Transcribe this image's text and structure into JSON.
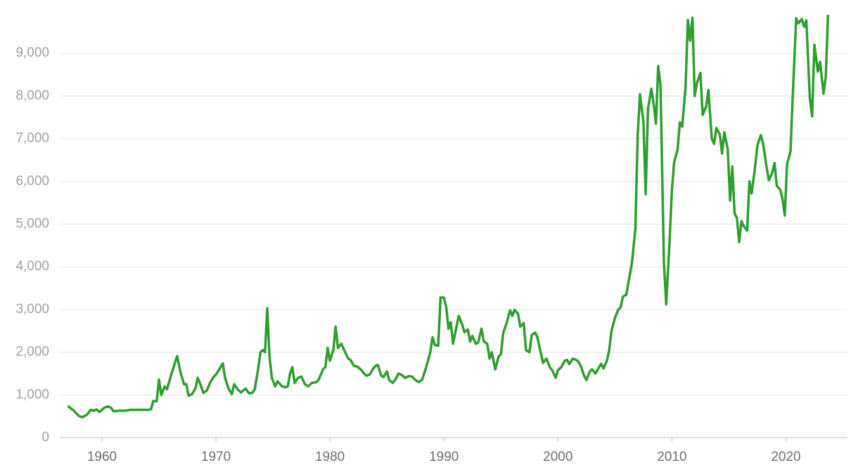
{
  "chart_data": {
    "type": "line",
    "x": [
      1957.0,
      1957.5,
      1958.0,
      1958.3,
      1958.7,
      1959.0,
      1959.3,
      1959.5,
      1959.8,
      1960.2,
      1960.5,
      1960.8,
      1961.0,
      1961.5,
      1962.0,
      1962.5,
      1963.0,
      1964.0,
      1964.3,
      1964.5,
      1964.8,
      1965.0,
      1965.2,
      1965.5,
      1965.7,
      1966.0,
      1966.4,
      1966.6,
      1966.9,
      1967.2,
      1967.4,
      1967.6,
      1967.9,
      1968.2,
      1968.4,
      1968.6,
      1968.9,
      1969.2,
      1969.5,
      1969.8,
      1970.0,
      1970.3,
      1970.6,
      1970.8,
      1971.1,
      1971.4,
      1971.6,
      1971.9,
      1972.2,
      1972.6,
      1972.9,
      1973.2,
      1973.4,
      1973.7,
      1973.9,
      1974.1,
      1974.3,
      1974.5,
      1974.7,
      1974.9,
      1975.2,
      1975.4,
      1975.8,
      1976.1,
      1976.3,
      1976.5,
      1976.7,
      1976.9,
      1977.2,
      1977.5,
      1977.8,
      1978.1,
      1978.4,
      1978.8,
      1979.0,
      1979.4,
      1979.6,
      1979.8,
      1980.0,
      1980.3,
      1980.5,
      1980.7,
      1981.0,
      1981.3,
      1981.6,
      1981.8,
      1982.1,
      1982.4,
      1982.7,
      1983.0,
      1983.2,
      1983.5,
      1983.8,
      1984.0,
      1984.2,
      1984.5,
      1984.7,
      1985.0,
      1985.2,
      1985.5,
      1985.8,
      1986.0,
      1986.3,
      1986.6,
      1986.9,
      1987.2,
      1987.5,
      1987.8,
      1988.1,
      1988.5,
      1988.8,
      1989.0,
      1989.2,
      1989.5,
      1989.7,
      1990.0,
      1990.2,
      1990.4,
      1990.6,
      1990.8,
      1991.1,
      1991.3,
      1991.6,
      1991.8,
      1992.1,
      1992.3,
      1992.5,
      1992.8,
      1993.0,
      1993.3,
      1993.5,
      1993.8,
      1994.0,
      1994.2,
      1994.5,
      1994.8,
      1995.0,
      1995.2,
      1995.5,
      1995.8,
      1996.0,
      1996.2,
      1996.5,
      1996.7,
      1997.0,
      1997.2,
      1997.5,
      1997.7,
      1998.0,
      1998.2,
      1998.5,
      1998.7,
      1999.0,
      1999.3,
      1999.5,
      1999.8,
      2000.0,
      2000.3,
      2000.6,
      2000.8,
      2001.0,
      2001.3,
      2001.6,
      2001.8,
      2002.0,
      2002.3,
      2002.5,
      2002.8,
      2003.0,
      2003.3,
      2003.5,
      2003.8,
      2004.0,
      2004.3,
      2004.5,
      2004.7,
      2005.0,
      2005.3,
      2005.5,
      2005.7,
      2006.0,
      2006.3,
      2006.5,
      2006.8,
      2007.0,
      2007.2,
      2007.5,
      2007.7,
      2007.9,
      2008.2,
      2008.4,
      2008.6,
      2008.8,
      2009.0,
      2009.3,
      2009.5,
      2009.8,
      2010.0,
      2010.2,
      2010.5,
      2010.7,
      2010.9,
      2011.2,
      2011.4,
      2011.6,
      2011.8,
      2012.0,
      2012.2,
      2012.5,
      2012.7,
      2013.0,
      2013.2,
      2013.5,
      2013.7,
      2013.9,
      2014.2,
      2014.4,
      2014.6,
      2014.9,
      2015.1,
      2015.3,
      2015.5,
      2015.7,
      2015.9,
      2016.1,
      2016.3,
      2016.6,
      2016.8,
      2017.0,
      2017.3,
      2017.5,
      2017.8,
      2018.0,
      2018.3,
      2018.5,
      2018.8,
      2019.0,
      2019.2,
      2019.5,
      2019.7,
      2019.9,
      2020.1,
      2020.4,
      2020.6,
      2020.9,
      2021.1,
      2021.4,
      2021.6,
      2021.8,
      2022.1,
      2022.3,
      2022.5,
      2022.8,
      2023.0,
      2023.3,
      2023.5,
      2023.7
    ],
    "values": [
      740,
      640,
      500,
      480,
      540,
      650,
      630,
      660,
      600,
      700,
      730,
      700,
      620,
      630,
      630,
      650,
      650,
      650,
      660,
      860,
      850,
      1360,
      1000,
      1200,
      1130,
      1400,
      1750,
      1910,
      1520,
      1250,
      1250,
      980,
      1020,
      1150,
      1400,
      1270,
      1050,
      1100,
      1300,
      1420,
      1480,
      1600,
      1740,
      1400,
      1150,
      1020,
      1250,
      1130,
      1060,
      1150,
      1040,
      1050,
      1130,
      1600,
      2000,
      2050,
      2000,
      3030,
      1900,
      1400,
      1200,
      1320,
      1200,
      1180,
      1200,
      1500,
      1650,
      1280,
      1400,
      1430,
      1250,
      1200,
      1280,
      1300,
      1350,
      1600,
      1650,
      2100,
      1800,
      2050,
      2600,
      2100,
      2200,
      2020,
      1850,
      1820,
      1680,
      1660,
      1600,
      1500,
      1450,
      1480,
      1620,
      1680,
      1700,
      1450,
      1420,
      1550,
      1350,
      1280,
      1380,
      1500,
      1470,
      1400,
      1440,
      1430,
      1350,
      1300,
      1360,
      1700,
      2000,
      2350,
      2170,
      2150,
      3280,
      3280,
      3050,
      2550,
      2700,
      2200,
      2600,
      2850,
      2650,
      2470,
      2530,
      2250,
      2380,
      2200,
      2220,
      2550,
      2250,
      2200,
      1850,
      2000,
      1600,
      1900,
      1950,
      2450,
      2680,
      2980,
      2850,
      2990,
      2900,
      2600,
      2680,
      2050,
      2000,
      2400,
      2460,
      2350,
      1980,
      1750,
      1850,
      1640,
      1580,
      1400,
      1580,
      1650,
      1800,
      1820,
      1720,
      1850,
      1820,
      1780,
      1680,
      1450,
      1350,
      1550,
      1600,
      1500,
      1600,
      1730,
      1620,
      1800,
      2050,
      2500,
      2800,
      3000,
      3050,
      3300,
      3350,
      3800,
      4100,
      4900,
      7100,
      8040,
      7400,
      5700,
      7700,
      8170,
      7800,
      7350,
      8700,
      8250,
      4100,
      3120,
      4600,
      5800,
      6450,
      6750,
      7380,
      7280,
      8200,
      9780,
      9300,
      9830,
      8000,
      8300,
      8540,
      7560,
      7750,
      8140,
      7000,
      6880,
      7250,
      7100,
      6650,
      7150,
      6750,
      5550,
      6350,
      5250,
      5150,
      4580,
      5070,
      4950,
      4850,
      6000,
      5720,
      6350,
      6850,
      7080,
      6880,
      6350,
      6030,
      6200,
      6430,
      5900,
      5800,
      5600,
      5200,
      6400,
      6700,
      8000,
      9820,
      9700,
      9800,
      9620,
      9770,
      7950,
      7520,
      9200,
      8570,
      8800,
      8050,
      8450,
      9900
    ],
    "color": "#2e9e2e",
    "xlim": [
      1956.3,
      2025.4
    ],
    "xticks": [
      1960,
      1970,
      1980,
      1990,
      2000,
      2010,
      2020
    ],
    "ylim": [
      0,
      10000
    ],
    "yticks": [
      0,
      {
        "value": 1000,
        "label": "1,000"
      },
      {
        "value": 2000,
        "label": "2,000"
      },
      {
        "value": 3000,
        "label": "3,000"
      },
      {
        "value": 4000,
        "label": "4,000"
      },
      {
        "value": 5000,
        "label": "5,000"
      },
      {
        "value": 6000,
        "label": "6,000"
      },
      {
        "value": 7000,
        "label": "7,000"
      },
      {
        "value": 8000,
        "label": "8,000"
      },
      {
        "value": 9000,
        "label": "9,000"
      }
    ],
    "grid": true
  }
}
